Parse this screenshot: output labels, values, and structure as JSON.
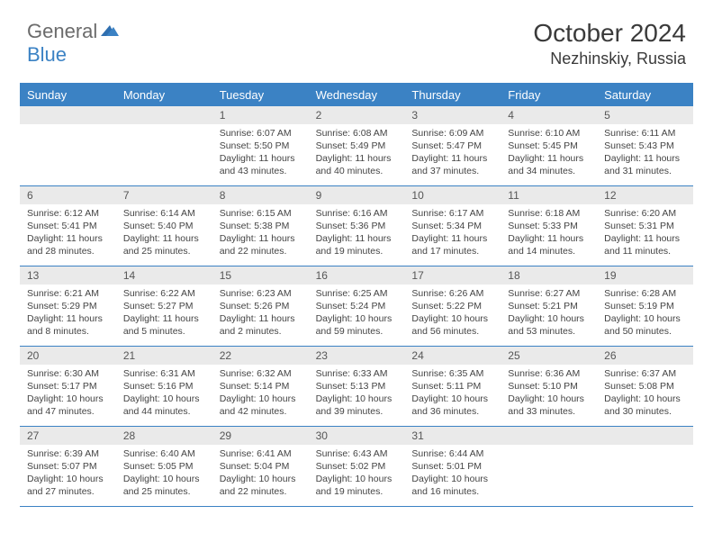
{
  "logo": {
    "text1": "General",
    "text2": "Blue"
  },
  "header": {
    "title": "October 2024",
    "location": "Nezhinskiy, Russia"
  },
  "colors": {
    "accent": "#3b82c4",
    "daynum_bg": "#eaeaea",
    "text_dark": "#3a3a3a",
    "text_body": "#444444",
    "logo_gray": "#6b6b6b"
  },
  "dayNames": [
    "Sunday",
    "Monday",
    "Tuesday",
    "Wednesday",
    "Thursday",
    "Friday",
    "Saturday"
  ],
  "weeks": [
    [
      {
        "n": "",
        "sr": "",
        "ss": "",
        "dl": ""
      },
      {
        "n": "",
        "sr": "",
        "ss": "",
        "dl": ""
      },
      {
        "n": "1",
        "sr": "Sunrise: 6:07 AM",
        "ss": "Sunset: 5:50 PM",
        "dl": "Daylight: 11 hours and 43 minutes."
      },
      {
        "n": "2",
        "sr": "Sunrise: 6:08 AM",
        "ss": "Sunset: 5:49 PM",
        "dl": "Daylight: 11 hours and 40 minutes."
      },
      {
        "n": "3",
        "sr": "Sunrise: 6:09 AM",
        "ss": "Sunset: 5:47 PM",
        "dl": "Daylight: 11 hours and 37 minutes."
      },
      {
        "n": "4",
        "sr": "Sunrise: 6:10 AM",
        "ss": "Sunset: 5:45 PM",
        "dl": "Daylight: 11 hours and 34 minutes."
      },
      {
        "n": "5",
        "sr": "Sunrise: 6:11 AM",
        "ss": "Sunset: 5:43 PM",
        "dl": "Daylight: 11 hours and 31 minutes."
      }
    ],
    [
      {
        "n": "6",
        "sr": "Sunrise: 6:12 AM",
        "ss": "Sunset: 5:41 PM",
        "dl": "Daylight: 11 hours and 28 minutes."
      },
      {
        "n": "7",
        "sr": "Sunrise: 6:14 AM",
        "ss": "Sunset: 5:40 PM",
        "dl": "Daylight: 11 hours and 25 minutes."
      },
      {
        "n": "8",
        "sr": "Sunrise: 6:15 AM",
        "ss": "Sunset: 5:38 PM",
        "dl": "Daylight: 11 hours and 22 minutes."
      },
      {
        "n": "9",
        "sr": "Sunrise: 6:16 AM",
        "ss": "Sunset: 5:36 PM",
        "dl": "Daylight: 11 hours and 19 minutes."
      },
      {
        "n": "10",
        "sr": "Sunrise: 6:17 AM",
        "ss": "Sunset: 5:34 PM",
        "dl": "Daylight: 11 hours and 17 minutes."
      },
      {
        "n": "11",
        "sr": "Sunrise: 6:18 AM",
        "ss": "Sunset: 5:33 PM",
        "dl": "Daylight: 11 hours and 14 minutes."
      },
      {
        "n": "12",
        "sr": "Sunrise: 6:20 AM",
        "ss": "Sunset: 5:31 PM",
        "dl": "Daylight: 11 hours and 11 minutes."
      }
    ],
    [
      {
        "n": "13",
        "sr": "Sunrise: 6:21 AM",
        "ss": "Sunset: 5:29 PM",
        "dl": "Daylight: 11 hours and 8 minutes."
      },
      {
        "n": "14",
        "sr": "Sunrise: 6:22 AM",
        "ss": "Sunset: 5:27 PM",
        "dl": "Daylight: 11 hours and 5 minutes."
      },
      {
        "n": "15",
        "sr": "Sunrise: 6:23 AM",
        "ss": "Sunset: 5:26 PM",
        "dl": "Daylight: 11 hours and 2 minutes."
      },
      {
        "n": "16",
        "sr": "Sunrise: 6:25 AM",
        "ss": "Sunset: 5:24 PM",
        "dl": "Daylight: 10 hours and 59 minutes."
      },
      {
        "n": "17",
        "sr": "Sunrise: 6:26 AM",
        "ss": "Sunset: 5:22 PM",
        "dl": "Daylight: 10 hours and 56 minutes."
      },
      {
        "n": "18",
        "sr": "Sunrise: 6:27 AM",
        "ss": "Sunset: 5:21 PM",
        "dl": "Daylight: 10 hours and 53 minutes."
      },
      {
        "n": "19",
        "sr": "Sunrise: 6:28 AM",
        "ss": "Sunset: 5:19 PM",
        "dl": "Daylight: 10 hours and 50 minutes."
      }
    ],
    [
      {
        "n": "20",
        "sr": "Sunrise: 6:30 AM",
        "ss": "Sunset: 5:17 PM",
        "dl": "Daylight: 10 hours and 47 minutes."
      },
      {
        "n": "21",
        "sr": "Sunrise: 6:31 AM",
        "ss": "Sunset: 5:16 PM",
        "dl": "Daylight: 10 hours and 44 minutes."
      },
      {
        "n": "22",
        "sr": "Sunrise: 6:32 AM",
        "ss": "Sunset: 5:14 PM",
        "dl": "Daylight: 10 hours and 42 minutes."
      },
      {
        "n": "23",
        "sr": "Sunrise: 6:33 AM",
        "ss": "Sunset: 5:13 PM",
        "dl": "Daylight: 10 hours and 39 minutes."
      },
      {
        "n": "24",
        "sr": "Sunrise: 6:35 AM",
        "ss": "Sunset: 5:11 PM",
        "dl": "Daylight: 10 hours and 36 minutes."
      },
      {
        "n": "25",
        "sr": "Sunrise: 6:36 AM",
        "ss": "Sunset: 5:10 PM",
        "dl": "Daylight: 10 hours and 33 minutes."
      },
      {
        "n": "26",
        "sr": "Sunrise: 6:37 AM",
        "ss": "Sunset: 5:08 PM",
        "dl": "Daylight: 10 hours and 30 minutes."
      }
    ],
    [
      {
        "n": "27",
        "sr": "Sunrise: 6:39 AM",
        "ss": "Sunset: 5:07 PM",
        "dl": "Daylight: 10 hours and 27 minutes."
      },
      {
        "n": "28",
        "sr": "Sunrise: 6:40 AM",
        "ss": "Sunset: 5:05 PM",
        "dl": "Daylight: 10 hours and 25 minutes."
      },
      {
        "n": "29",
        "sr": "Sunrise: 6:41 AM",
        "ss": "Sunset: 5:04 PM",
        "dl": "Daylight: 10 hours and 22 minutes."
      },
      {
        "n": "30",
        "sr": "Sunrise: 6:43 AM",
        "ss": "Sunset: 5:02 PM",
        "dl": "Daylight: 10 hours and 19 minutes."
      },
      {
        "n": "31",
        "sr": "Sunrise: 6:44 AM",
        "ss": "Sunset: 5:01 PM",
        "dl": "Daylight: 10 hours and 16 minutes."
      },
      {
        "n": "",
        "sr": "",
        "ss": "",
        "dl": ""
      },
      {
        "n": "",
        "sr": "",
        "ss": "",
        "dl": ""
      }
    ]
  ]
}
